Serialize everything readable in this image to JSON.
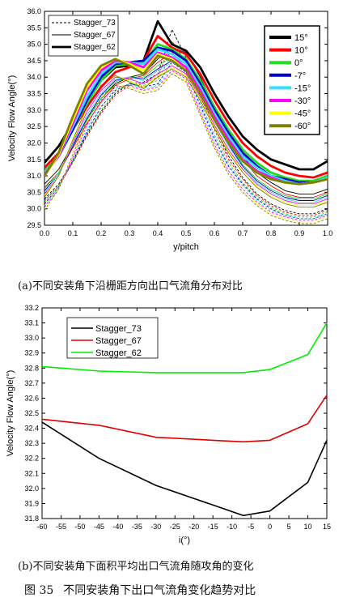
{
  "chart_data": [
    {
      "type": "line",
      "panel": "a",
      "xlabel": "y/pitch",
      "ylabel": "Velocity Flow Angle(°)",
      "xlim": [
        0.0,
        1.0
      ],
      "ylim": [
        29.5,
        36.0
      ],
      "xticks": [
        "0.0",
        "0.1",
        "0.2",
        "0.3",
        "0.4",
        "0.5",
        "0.6",
        "0.7",
        "0.8",
        "0.9",
        "1.0"
      ],
      "yticks": [
        "29.5",
        "30.0",
        "30.5",
        "31.0",
        "31.5",
        "32.0",
        "32.5",
        "33.0",
        "33.5",
        "34.0",
        "34.5",
        "35.0",
        "35.5",
        "36.0"
      ],
      "grid": false,
      "legend_style": {
        "position": "top-left",
        "entries": [
          {
            "label": "Stagger_73",
            "style": "dashed"
          },
          {
            "label": "Stagger_67",
            "style": "solid-thin"
          },
          {
            "label": "Stagger_62",
            "style": "solid-thick"
          }
        ]
      },
      "legend_angle": {
        "position": "top-right",
        "entries": [
          {
            "label": "15°",
            "color": "#000000"
          },
          {
            "label": "10°",
            "color": "#ff0000"
          },
          {
            "label": "0°",
            "color": "#22dd22"
          },
          {
            "label": "-7°",
            "color": "#0000cc"
          },
          {
            "label": "-15°",
            "color": "#33e0ff"
          },
          {
            "label": "-30°",
            "color": "#ff00ff"
          },
          {
            "label": "-45°",
            "color": "#ffff00"
          },
          {
            "label": "-60°",
            "color": "#808000"
          }
        ]
      },
      "x": [
        0.0,
        0.05,
        0.1,
        0.15,
        0.2,
        0.25,
        0.3,
        0.35,
        0.4,
        0.45,
        0.5,
        0.55,
        0.6,
        0.65,
        0.7,
        0.75,
        0.8,
        0.85,
        0.9,
        0.95,
        1.0
      ],
      "series": [
        {
          "name": "15°",
          "group": "Stagger_62",
          "values": [
            31.4,
            31.9,
            32.6,
            33.3,
            33.9,
            34.3,
            34.35,
            34.5,
            35.7,
            35.0,
            34.8,
            34.3,
            33.5,
            32.8,
            32.2,
            31.8,
            31.5,
            31.35,
            31.2,
            31.2,
            31.45
          ]
        },
        {
          "name": "10°",
          "group": "Stagger_62",
          "values": [
            31.25,
            31.7,
            32.4,
            33.1,
            33.7,
            34.15,
            34.3,
            34.5,
            35.25,
            34.9,
            34.7,
            34.1,
            33.3,
            32.6,
            32.0,
            31.6,
            31.3,
            31.1,
            31.0,
            30.95,
            31.1
          ]
        },
        {
          "name": "0°",
          "group": "Stagger_62",
          "values": [
            31.15,
            31.6,
            32.4,
            33.2,
            33.9,
            34.35,
            34.4,
            34.45,
            35.0,
            34.85,
            34.55,
            33.9,
            33.1,
            32.4,
            31.8,
            31.4,
            31.1,
            30.95,
            30.85,
            30.85,
            31.0
          ]
        },
        {
          "name": "-7°",
          "group": "Stagger_62",
          "values": [
            31.1,
            31.6,
            32.4,
            33.3,
            34.0,
            34.4,
            34.45,
            34.5,
            34.9,
            34.8,
            34.5,
            33.8,
            33.0,
            32.3,
            31.7,
            31.3,
            31.0,
            30.9,
            30.8,
            30.8,
            30.95
          ]
        },
        {
          "name": "-15°",
          "group": "Stagger_62",
          "values": [
            31.1,
            31.6,
            32.5,
            33.4,
            34.1,
            34.45,
            34.45,
            34.4,
            34.85,
            34.7,
            34.4,
            33.7,
            32.9,
            32.2,
            31.6,
            31.25,
            31.0,
            30.85,
            30.75,
            30.8,
            30.95
          ]
        },
        {
          "name": "-30°",
          "group": "Stagger_62",
          "values": [
            31.05,
            31.6,
            32.6,
            33.6,
            34.2,
            34.5,
            34.45,
            34.3,
            34.75,
            34.6,
            34.3,
            33.6,
            32.8,
            32.1,
            31.5,
            31.15,
            30.95,
            30.8,
            30.75,
            30.8,
            30.9
          ]
        },
        {
          "name": "-45°",
          "group": "Stagger_62",
          "values": [
            31.0,
            31.65,
            32.7,
            33.7,
            34.3,
            34.55,
            34.4,
            34.2,
            34.7,
            34.55,
            34.2,
            33.5,
            32.7,
            32.0,
            31.45,
            31.1,
            30.9,
            30.8,
            30.75,
            30.8,
            30.9
          ]
        },
        {
          "name": "-60°",
          "group": "Stagger_62",
          "values": [
            31.0,
            31.7,
            32.8,
            33.8,
            34.35,
            34.55,
            34.35,
            34.1,
            34.65,
            34.5,
            34.2,
            33.5,
            32.7,
            32.0,
            31.45,
            31.1,
            30.9,
            30.8,
            30.75,
            30.8,
            30.9
          ]
        },
        {
          "name": "15°",
          "group": "Stagger_67",
          "values": [
            30.75,
            31.2,
            31.95,
            32.7,
            33.35,
            33.8,
            34.0,
            34.1,
            34.55,
            34.9,
            34.75,
            34.0,
            33.1,
            32.3,
            31.6,
            31.1,
            30.8,
            30.55,
            30.45,
            30.45,
            30.6
          ]
        },
        {
          "name": "10°",
          "group": "Stagger_67",
          "values": [
            30.65,
            31.1,
            31.85,
            32.6,
            33.25,
            33.75,
            33.95,
            34.05,
            34.45,
            34.75,
            34.6,
            33.85,
            32.95,
            32.15,
            31.5,
            31.0,
            30.7,
            30.45,
            30.35,
            30.35,
            30.5
          ]
        },
        {
          "name": "0°",
          "group": "Stagger_67",
          "values": [
            30.6,
            31.1,
            31.9,
            32.7,
            33.35,
            33.85,
            34.0,
            34.0,
            34.35,
            34.6,
            34.4,
            33.65,
            32.8,
            32.0,
            31.35,
            30.9,
            30.6,
            30.4,
            30.3,
            30.3,
            30.45
          ]
        },
        {
          "name": "-7°",
          "group": "Stagger_67",
          "values": [
            30.55,
            31.05,
            31.9,
            32.75,
            33.45,
            33.9,
            34.0,
            33.95,
            34.25,
            34.5,
            34.3,
            33.6,
            32.7,
            31.95,
            31.3,
            30.85,
            30.55,
            30.35,
            30.25,
            30.25,
            30.4
          ]
        },
        {
          "name": "-15°",
          "group": "Stagger_67",
          "values": [
            30.5,
            31.05,
            31.95,
            32.85,
            33.5,
            33.95,
            34.0,
            33.9,
            34.2,
            34.45,
            34.2,
            33.5,
            32.65,
            31.9,
            31.25,
            30.8,
            30.5,
            30.3,
            30.2,
            30.2,
            30.35
          ]
        },
        {
          "name": "-30°",
          "group": "Stagger_67",
          "values": [
            30.45,
            31.0,
            32.0,
            32.95,
            33.6,
            34.0,
            33.95,
            33.8,
            34.1,
            34.35,
            34.1,
            33.4,
            32.55,
            31.8,
            31.2,
            30.75,
            30.45,
            30.25,
            30.15,
            30.15,
            30.3
          ]
        },
        {
          "name": "-45°",
          "group": "Stagger_67",
          "values": [
            30.4,
            31.0,
            32.05,
            33.05,
            33.7,
            34.05,
            33.9,
            33.7,
            34.05,
            34.3,
            34.05,
            33.35,
            32.5,
            31.75,
            31.15,
            30.7,
            30.4,
            30.2,
            30.1,
            30.1,
            30.25
          ]
        },
        {
          "name": "-60°",
          "group": "Stagger_67",
          "values": [
            30.35,
            31.0,
            32.1,
            33.1,
            33.75,
            34.05,
            33.85,
            33.65,
            34.0,
            34.25,
            34.0,
            33.3,
            32.45,
            31.7,
            31.1,
            30.65,
            30.35,
            30.15,
            30.05,
            30.05,
            30.2
          ]
        },
        {
          "name": "15°",
          "group": "Stagger_73",
          "values": [
            30.3,
            30.75,
            31.45,
            32.25,
            32.95,
            33.5,
            33.8,
            33.85,
            34.1,
            35.45,
            34.6,
            33.5,
            32.5,
            31.6,
            30.95,
            30.45,
            30.15,
            29.95,
            29.85,
            29.85,
            30.0
          ]
        },
        {
          "name": "10°",
          "group": "Stagger_73",
          "values": [
            30.25,
            30.7,
            31.4,
            32.2,
            32.9,
            33.45,
            33.75,
            33.8,
            34.0,
            35.1,
            34.45,
            33.4,
            32.4,
            31.5,
            30.9,
            30.4,
            30.1,
            29.9,
            29.8,
            29.8,
            29.95
          ]
        },
        {
          "name": "0°",
          "group": "Stagger_73",
          "values": [
            30.2,
            30.7,
            31.45,
            32.3,
            33.0,
            33.55,
            33.8,
            33.75,
            33.9,
            34.7,
            34.25,
            33.25,
            32.25,
            31.4,
            30.8,
            30.35,
            30.05,
            29.85,
            29.75,
            29.75,
            29.9
          ]
        },
        {
          "name": "-7°",
          "group": "Stagger_73",
          "values": [
            30.15,
            30.65,
            31.45,
            32.35,
            33.1,
            33.6,
            33.8,
            33.7,
            33.8,
            34.45,
            34.15,
            33.15,
            32.15,
            31.3,
            30.75,
            30.3,
            30.0,
            29.8,
            29.7,
            29.7,
            29.85
          ]
        },
        {
          "name": "-15°",
          "group": "Stagger_73",
          "values": [
            30.1,
            30.65,
            31.5,
            32.45,
            33.2,
            33.65,
            33.8,
            33.65,
            33.75,
            34.3,
            34.05,
            33.05,
            32.05,
            31.25,
            30.7,
            30.25,
            29.95,
            29.8,
            29.7,
            29.7,
            29.85
          ]
        },
        {
          "name": "-30°",
          "group": "Stagger_73",
          "values": [
            30.05,
            30.6,
            31.55,
            32.55,
            33.3,
            33.7,
            33.75,
            33.6,
            33.7,
            34.2,
            33.95,
            32.95,
            31.95,
            31.15,
            30.6,
            30.2,
            29.9,
            29.75,
            29.65,
            29.65,
            29.8
          ]
        },
        {
          "name": "-45°",
          "group": "Stagger_73",
          "values": [
            30.0,
            30.6,
            31.6,
            32.65,
            33.4,
            33.75,
            33.7,
            33.55,
            33.65,
            34.15,
            33.9,
            32.9,
            31.9,
            31.1,
            30.55,
            30.15,
            29.85,
            29.7,
            29.6,
            29.6,
            29.75
          ]
        },
        {
          "name": "-60°",
          "group": "Stagger_73",
          "values": [
            29.95,
            30.6,
            31.65,
            32.7,
            33.45,
            33.75,
            33.65,
            33.5,
            33.6,
            34.1,
            33.85,
            32.85,
            31.85,
            31.05,
            30.5,
            30.1,
            29.8,
            29.65,
            29.55,
            29.55,
            29.7
          ]
        }
      ]
    },
    {
      "type": "line",
      "panel": "b",
      "xlabel": "i(°)",
      "ylabel": "Velocity Flow Angle(°)",
      "xlim": [
        -60,
        15
      ],
      "ylim": [
        31.8,
        33.2
      ],
      "xticks": [
        "-60",
        "-55",
        "-50",
        "-45",
        "-40",
        "-35",
        "-30",
        "-25",
        "-20",
        "-15",
        "-10",
        "-5",
        "0",
        "5",
        "10",
        "15"
      ],
      "yticks": [
        "31.8",
        "31.9",
        "32.0",
        "32.1",
        "32.2",
        "32.3",
        "32.4",
        "32.5",
        "32.6",
        "32.7",
        "32.8",
        "32.9",
        "33.0",
        "33.1",
        "33.2"
      ],
      "grid": false,
      "legend_position": "top-left",
      "x": [
        -60,
        -45,
        -30,
        -15,
        -7,
        0,
        10,
        15
      ],
      "series": [
        {
          "name": "Stagger_73",
          "color": "#000000",
          "values": [
            32.44,
            32.2,
            32.02,
            31.89,
            31.82,
            31.85,
            32.04,
            32.32
          ]
        },
        {
          "name": "Stagger_67",
          "color": "#e00000",
          "values": [
            32.46,
            32.42,
            32.34,
            32.32,
            32.31,
            32.32,
            32.43,
            32.62
          ]
        },
        {
          "name": "Stagger_62",
          "color": "#00ee00",
          "values": [
            32.81,
            32.78,
            32.77,
            32.77,
            32.77,
            32.79,
            32.89,
            33.1
          ]
        }
      ]
    }
  ],
  "captions": {
    "a": "(a)不同安装角下沿栅距方向出口气流角分布对比",
    "b": "(b)不同安装角下面积平均出口气流角随攻角的变化",
    "figure_num": "图 35",
    "figure_title": "不同安装角下出口气流角变化趋势对比"
  }
}
